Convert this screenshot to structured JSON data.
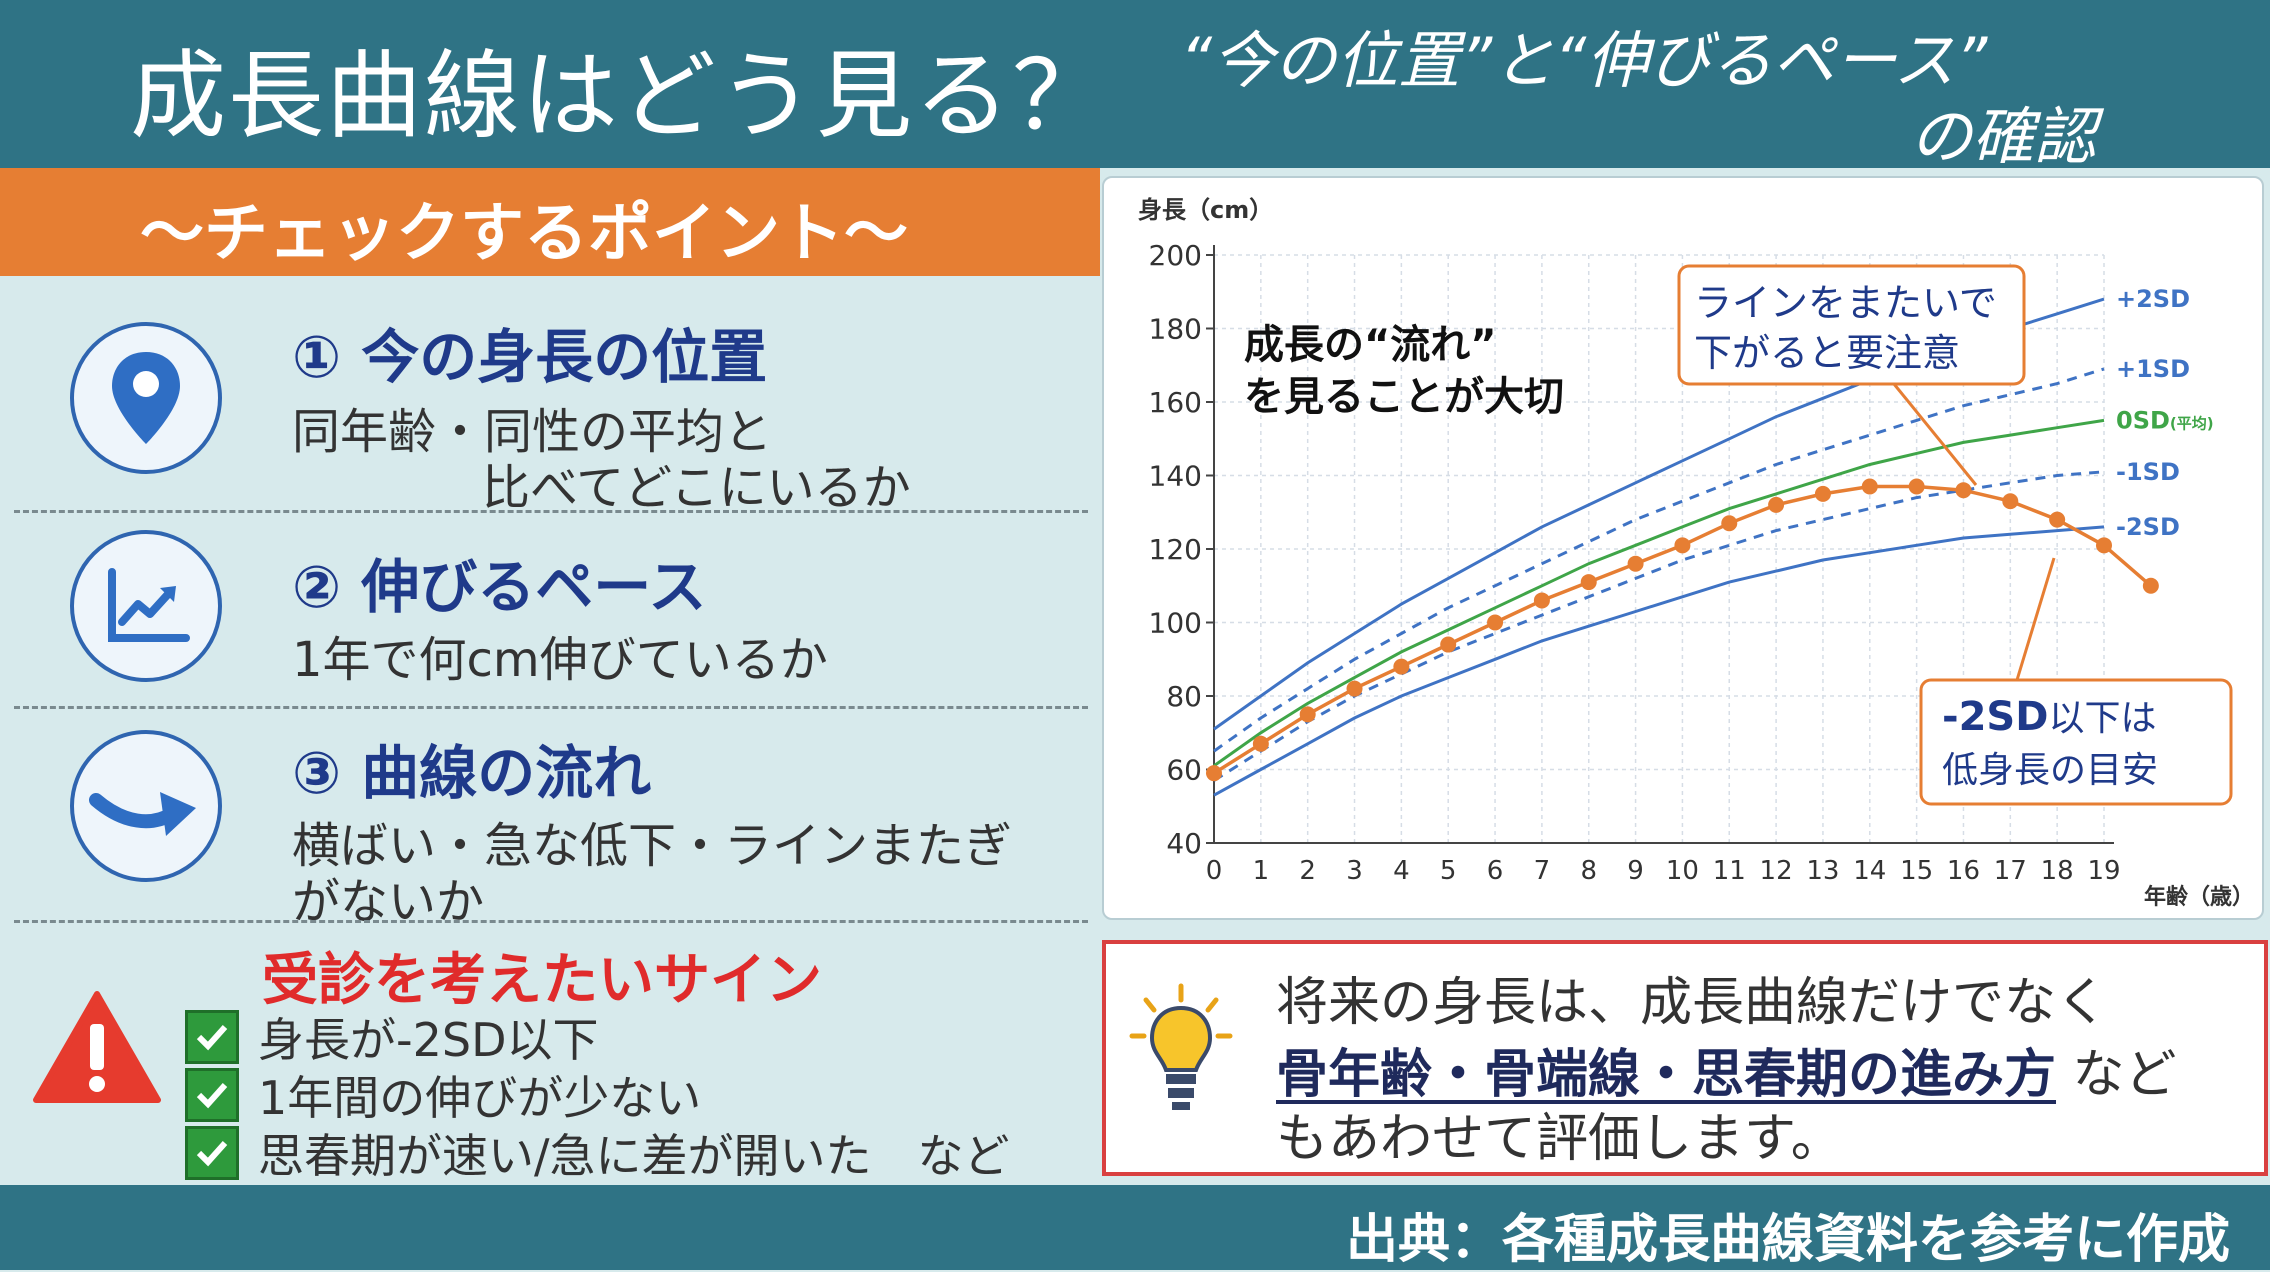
{
  "header": {
    "title": "成長曲線はどう見る？",
    "subtitle_line1": "“今の位置”と“伸びるペース”",
    "subtitle_line2": "の確認"
  },
  "check_section": {
    "title": "〜チェックするポイント〜",
    "points": [
      {
        "title": "① 今の身長の位置",
        "desc1": "同年齢・同性の平均と",
        "desc2": "比べてどこにいるか",
        "icon": "location-pin-icon"
      },
      {
        "title": "② 伸びるペース",
        "desc1": "1年で何cm伸びているか",
        "icon": "trend-chart-icon"
      },
      {
        "title": "③ 曲線の流れ",
        "desc1": "横ばい・急な低下・ラインまたぎ",
        "desc2": "がないか",
        "icon": "curved-arrow-icon"
      }
    ]
  },
  "signs": {
    "title": "受診を考えたいサイン",
    "items": [
      "身長が-2SD以下",
      "1年間の伸びが少ない",
      "思春期が速い/急に差が開いた　など"
    ],
    "icon": "warning-icon",
    "check_icon": "check-icon"
  },
  "chart_data": {
    "type": "line",
    "ylabel": "身長（cm）",
    "xlabel": "年齢（歳）",
    "ylim": [
      40,
      200
    ],
    "xlim": [
      0,
      19
    ],
    "yticks": [
      "40",
      "60",
      "80",
      "100",
      "120",
      "140",
      "160",
      "180",
      "200"
    ],
    "xticks": [
      "0",
      "1",
      "2",
      "3",
      "4",
      "5",
      "6",
      "7",
      "8",
      "9",
      "10",
      "11",
      "12",
      "13",
      "14",
      "15",
      "16",
      "17",
      "18",
      "19"
    ],
    "grid": true,
    "reference_lines": [
      {
        "name": "+2SD",
        "style": "solid",
        "color": "#3f73c4",
        "points": [
          [
            0,
            71
          ],
          [
            1,
            80
          ],
          [
            2,
            89
          ],
          [
            3,
            97
          ],
          [
            4,
            105
          ],
          [
            5,
            112
          ],
          [
            6,
            119
          ],
          [
            7,
            126
          ],
          [
            8,
            132
          ],
          [
            9,
            138
          ],
          [
            10,
            144
          ],
          [
            11,
            150
          ],
          [
            12,
            156
          ],
          [
            13,
            161
          ],
          [
            14,
            166
          ],
          [
            15,
            171
          ],
          [
            16,
            175
          ],
          [
            17,
            180
          ],
          [
            18,
            184
          ],
          [
            19,
            188
          ]
        ]
      },
      {
        "name": "+1SD",
        "style": "dashed",
        "color": "#3f73c4",
        "points": [
          [
            0,
            65
          ],
          [
            1,
            74
          ],
          [
            2,
            82
          ],
          [
            3,
            90
          ],
          [
            4,
            97
          ],
          [
            5,
            104
          ],
          [
            6,
            110
          ],
          [
            7,
            116
          ],
          [
            8,
            122
          ],
          [
            9,
            128
          ],
          [
            10,
            133
          ],
          [
            11,
            138
          ],
          [
            12,
            143
          ],
          [
            13,
            147
          ],
          [
            14,
            151
          ],
          [
            15,
            155
          ],
          [
            16,
            159
          ],
          [
            17,
            162
          ],
          [
            18,
            165
          ],
          [
            19,
            169
          ]
        ]
      },
      {
        "name": "0SD",
        "note": "(平均)",
        "style": "solid",
        "color": "#3fa548",
        "points": [
          [
            0,
            61
          ],
          [
            1,
            70
          ],
          [
            2,
            78
          ],
          [
            3,
            85
          ],
          [
            4,
            92
          ],
          [
            5,
            98
          ],
          [
            6,
            104
          ],
          [
            7,
            110
          ],
          [
            8,
            116
          ],
          [
            9,
            121
          ],
          [
            10,
            126
          ],
          [
            11,
            131
          ],
          [
            12,
            135
          ],
          [
            13,
            139
          ],
          [
            14,
            143
          ],
          [
            15,
            146
          ],
          [
            16,
            149
          ],
          [
            17,
            151
          ],
          [
            18,
            153
          ],
          [
            19,
            155
          ]
        ]
      },
      {
        "name": "-1SD",
        "style": "dashed",
        "color": "#3f73c4",
        "points": [
          [
            0,
            57
          ],
          [
            1,
            65
          ],
          [
            2,
            73
          ],
          [
            3,
            80
          ],
          [
            4,
            86
          ],
          [
            5,
            92
          ],
          [
            6,
            97
          ],
          [
            7,
            102
          ],
          [
            8,
            107
          ],
          [
            9,
            112
          ],
          [
            10,
            117
          ],
          [
            11,
            121
          ],
          [
            12,
            125
          ],
          [
            13,
            128
          ],
          [
            14,
            131
          ],
          [
            15,
            134
          ],
          [
            16,
            136
          ],
          [
            17,
            138
          ],
          [
            18,
            140
          ],
          [
            19,
            141
          ]
        ]
      },
      {
        "name": "-2SD",
        "style": "solid",
        "color": "#3f73c4",
        "points": [
          [
            0,
            53
          ],
          [
            1,
            60
          ],
          [
            2,
            67
          ],
          [
            3,
            74
          ],
          [
            4,
            80
          ],
          [
            5,
            85
          ],
          [
            6,
            90
          ],
          [
            7,
            95
          ],
          [
            8,
            99
          ],
          [
            9,
            103
          ],
          [
            10,
            107
          ],
          [
            11,
            111
          ],
          [
            12,
            114
          ],
          [
            13,
            117
          ],
          [
            14,
            119
          ],
          [
            15,
            121
          ],
          [
            16,
            123
          ],
          [
            17,
            124
          ],
          [
            18,
            125
          ],
          [
            19,
            126
          ]
        ]
      }
    ],
    "series": [
      {
        "values_xy": [
          [
            0,
            59
          ],
          [
            1,
            67
          ],
          [
            2,
            75
          ],
          [
            3,
            82
          ],
          [
            4,
            88
          ],
          [
            5,
            94
          ],
          [
            6,
            100
          ],
          [
            7,
            106
          ],
          [
            8,
            111
          ],
          [
            9,
            116
          ],
          [
            10,
            121
          ],
          [
            11,
            127
          ],
          [
            12,
            132
          ],
          [
            13,
            135
          ],
          [
            14,
            137
          ],
          [
            15,
            137
          ],
          [
            16,
            136
          ],
          [
            17,
            133
          ],
          [
            18,
            128
          ],
          [
            19,
            121
          ],
          [
            20,
            110
          ]
        ],
        "color": "#e67e33"
      }
    ],
    "annotations": {
      "flow_note_line1": "成長の“流れ”",
      "flow_note_line2": "を見ることが大切",
      "crossing_note_line1": "ラインをまたいで",
      "crossing_note_line2": "下がると要注意",
      "short_note_line1_bold": "-2SD",
      "short_note_line1_rest": "以下は",
      "short_note_line2": "低身長の目安"
    }
  },
  "tip": {
    "line1": "将来の身長は、成長曲線だけでなく",
    "line2_strong": "骨年齢・骨端線・思春期の進み方",
    "line2_rest": " など",
    "line3": "もあわせて評価します。",
    "icon": "lightbulb-icon"
  },
  "footer": {
    "source": "出典：各種成長曲線資料を参考に作成"
  },
  "colors": {
    "header": "#2f7385",
    "accent": "#e67e33",
    "panel": "#d7eaec",
    "point_blue": "#1f3a8a",
    "warning": "#e02b2b"
  }
}
